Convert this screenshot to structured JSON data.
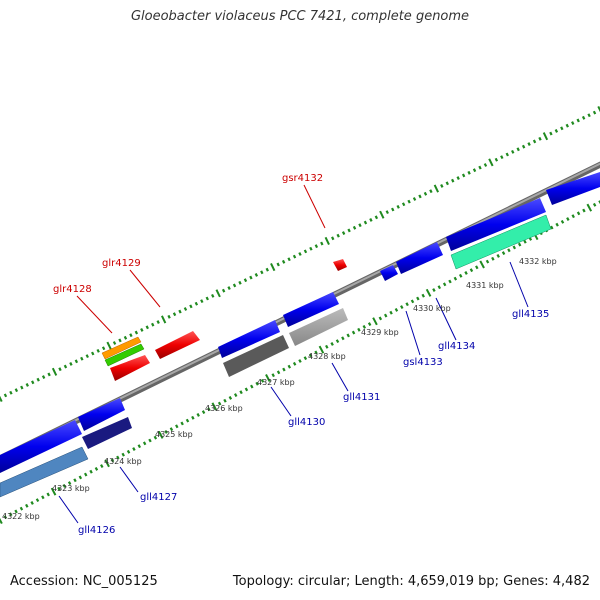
{
  "title": "Gloeobacter violaceus PCC 7421, complete genome",
  "footer": {
    "accession": "Accession: NC_005125",
    "stats": "Topology: circular; Length: 4,659,019 bp; Genes: 4,482"
  },
  "colors": {
    "backbone": "#8c8c8c",
    "tick": "#1f8a1f",
    "forward_label": "#cc0000",
    "reverse_label": "#0000aa"
  },
  "scale_labels": [
    "4322 kbp",
    "4323 kbp",
    "4324 kbp",
    "4325 kbp",
    "4326 kbp",
    "4327 kbp",
    "4328 kbp",
    "4329 kbp",
    "4330 kbp",
    "4331 kbp",
    "4332 kbp"
  ],
  "gene_labels": [
    "glr4128",
    "glr4129",
    "gsr4132",
    "gll4126",
    "gll4127",
    "gll4130",
    "gll4131",
    "gsl4133",
    "gll4134",
    "gll4135"
  ]
}
